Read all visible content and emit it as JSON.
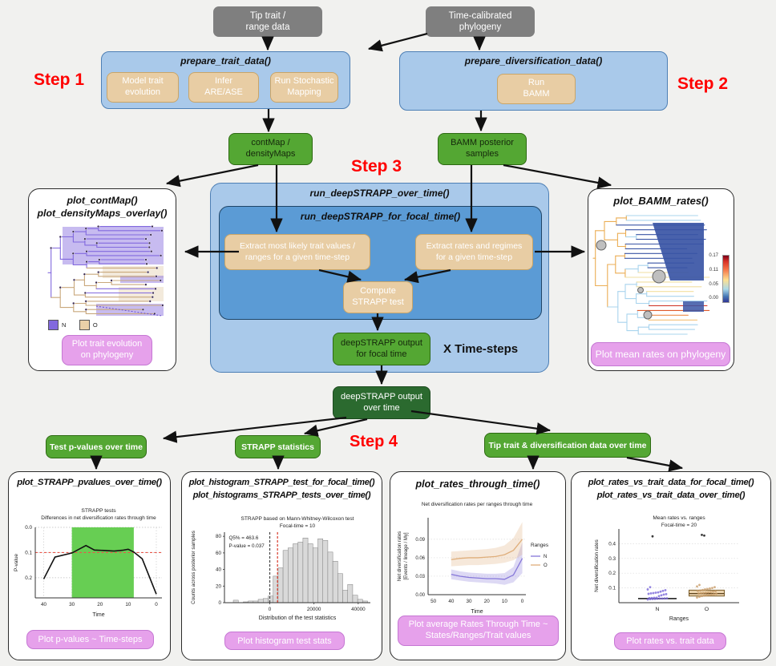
{
  "colors": {
    "step_label": "#FF0000",
    "gray_box": "#7F7F7F",
    "light_blue": "#A9C9EA",
    "inner_blue": "#5B9BD5",
    "tan": "#E8CDA4",
    "green": "#54A733",
    "dark_green": "#2B6A2F",
    "purple_button": "#E6A1EB",
    "trait_n_purple": "#8269DE",
    "trait_o_tan": "#EAD0A8"
  },
  "top": {
    "tip_trait_box": "Tip trait /\nrange data",
    "phylogeny_box": "Time-calibrated\nphylogeny"
  },
  "steps": {
    "s1": "Step 1",
    "s2": "Step 2",
    "s3": "Step 3",
    "s4": "Step 4"
  },
  "step1": {
    "title": "prepare_trait_data()",
    "items": [
      "Model trait\nevolution",
      "Infer\nARE/ASE",
      "Run Stochastic\nMapping"
    ]
  },
  "step2": {
    "title": "prepare_diversification_data()",
    "items": [
      "Run\nBAMM"
    ]
  },
  "mid": {
    "contmap_box": "contMap /\ndensityMaps",
    "bamm_box": "BAMM posterior\nsamples",
    "outer_title": "run_deepSTRAPP_over_time()",
    "inner_title": "run_deepSTRAPP_for_focal_time()",
    "extract_trait": "Extract most likely trait values /\nranges for a given time-step",
    "extract_rates": "Extract rates and regimes\nfor a given time-step",
    "compute": "Compute\nSTRAPP test",
    "focal_output": "deepSTRAPP output\nfor focal time",
    "timesteps_label": "X  Time-steps",
    "overtime_output": "deepSTRAPP output\nover time"
  },
  "left_panel": {
    "title1": "plot_contMap()",
    "title2": "plot_densityMaps_overlay()",
    "legend": [
      {
        "label": "N",
        "color": "#8269DE"
      },
      {
        "label": "O",
        "color": "#EAD0A8"
      }
    ],
    "button": "Plot trait evolution\non phylogeny"
  },
  "right_panel": {
    "title": "plot_BAMM_rates()",
    "colorbar_ticks": [
      "0.17",
      "0.11",
      "0.05",
      "0.00"
    ],
    "button": "Plot mean rates on phylogeny"
  },
  "step4_boxes": [
    "Test p-values over time",
    "STRAPP statistics",
    "Tip trait & diversification data over time"
  ],
  "bottom_panels": [
    {
      "title1": "plot_STRAPP_pvalues_over_time()",
      "button": "Plot p-values ~ Time-steps"
    },
    {
      "title1": "plot_histogram_STRAPP_test_for_focal_time()",
      "title2": "plot_histograms_STRAPP_tests_over_time()",
      "button": "Plot histogram test stats"
    },
    {
      "title1": "plot_rates_through_time()",
      "button": "Plot average Rates Through Time ~\nStates/Ranges/Trait values"
    },
    {
      "title1": "plot_rates_vs_trait_data_for_focal_time()",
      "title2": "plot_rates_vs_trait_data_over_time()",
      "button": "Plot rates vs. trait data"
    }
  ],
  "chart_data": [
    {
      "type": "line",
      "title": "STRAPP tests",
      "subtitle": "Differences in net diversification rates through time",
      "xlabel": "Time",
      "ylabel": "P-value",
      "xticks": [
        40,
        30,
        20,
        10,
        0
      ],
      "yticks": [
        0.0,
        0.1,
        0.2
      ],
      "xlim": [
        43,
        -2
      ],
      "ylim": [
        0,
        0.28
      ],
      "x_reversed": true,
      "y_inverted": true,
      "significance_band": {
        "x_from": 30,
        "x_to": 8,
        "color": "#67CE53"
      },
      "threshold_line": {
        "y": 0.1,
        "color": "#E8564A"
      },
      "x": [
        40,
        36,
        30,
        25,
        22,
        18,
        15,
        12,
        10,
        8,
        5,
        0
      ],
      "y": [
        0.205,
        0.118,
        0.102,
        0.072,
        0.09,
        0.092,
        0.094,
        0.091,
        0.087,
        0.098,
        0.125,
        0.265
      ]
    },
    {
      "type": "bar",
      "title": "STRAPP based on Mann-Whitney-Wilcoxon test",
      "subtitle": "Focal-time = 10",
      "xlabel": "Distribution of the test statistics",
      "ylabel": "Counts across posterior samples",
      "xticks": [
        0,
        20000,
        40000
      ],
      "yticks": [
        0,
        20,
        40,
        60,
        80
      ],
      "xlim": [
        -20500,
        45500
      ],
      "ylim": [
        0,
        85
      ],
      "bin_start": -16500,
      "bin_width": 2250,
      "values": [
        3,
        0,
        1,
        2,
        2,
        4,
        5,
        8,
        32,
        42,
        63,
        66,
        71,
        73,
        78,
        71,
        66,
        77,
        75,
        61,
        50,
        35,
        15,
        22,
        9,
        4,
        2
      ],
      "vlines": [
        {
          "x": 0,
          "color": "#444444"
        },
        {
          "x": 3500,
          "color": "#D73A2A"
        }
      ],
      "annotations": [
        "Q5% = 463.6",
        "P-value = 0.037"
      ],
      "bar_color": "#D9D9D9"
    },
    {
      "type": "area",
      "title": "Net diversification rates per ranges through time",
      "xlabel": "Time",
      "ylabel": "Net diversification rates\n[Events / lineage / My]",
      "xticks": [
        50,
        40,
        30,
        20,
        10,
        0
      ],
      "yticks": [
        0.0,
        0.03,
        0.06,
        0.09
      ],
      "xlim": [
        53,
        -2
      ],
      "ylim": [
        0,
        0.125
      ],
      "x_reversed": true,
      "legend_title": "Ranges",
      "x": [
        40,
        35,
        30,
        25,
        20,
        15,
        10,
        5,
        0
      ],
      "series": [
        {
          "name": "N",
          "color": "#8677D9",
          "values": [
            0.033,
            0.03,
            0.028,
            0.027,
            0.026,
            0.026,
            0.025,
            0.032,
            0.059
          ],
          "lo": [
            0.025,
            0.023,
            0.021,
            0.02,
            0.019,
            0.018,
            0.016,
            0.02,
            0.035
          ],
          "hi": [
            0.041,
            0.038,
            0.036,
            0.035,
            0.034,
            0.034,
            0.035,
            0.045,
            0.085
          ]
        },
        {
          "name": "O",
          "color": "#DFAE7B",
          "values": [
            0.057,
            0.059,
            0.06,
            0.06,
            0.061,
            0.062,
            0.065,
            0.072,
            0.09
          ],
          "lo": [
            0.046,
            0.047,
            0.048,
            0.048,
            0.049,
            0.05,
            0.052,
            0.056,
            0.065
          ],
          "hi": [
            0.07,
            0.071,
            0.072,
            0.073,
            0.074,
            0.076,
            0.08,
            0.092,
            0.118
          ]
        }
      ]
    },
    {
      "type": "scatter",
      "title": "Mean rates vs. ranges",
      "subtitle": "Focal-time = 20",
      "xlabel": "Ranges",
      "ylabel": "Net diversification rates",
      "categories": [
        "N",
        "O"
      ],
      "yticks": [
        0.1,
        0.2,
        0.3,
        0.4
      ],
      "ylim": [
        0,
        0.5
      ],
      "points": {
        "N": [
          0.022,
          0.024,
          0.025,
          0.026,
          0.027,
          0.028,
          0.028,
          0.029,
          0.03,
          0.031,
          0.032,
          0.033,
          0.034,
          0.045,
          0.05,
          0.055,
          0.058,
          0.06,
          0.063,
          0.065,
          0.068,
          0.07,
          0.075,
          0.08,
          0.085,
          0.09,
          0.105,
          0.45
        ],
        "O": [
          0.035,
          0.04,
          0.045,
          0.048,
          0.05,
          0.052,
          0.055,
          0.057,
          0.06,
          0.062,
          0.064,
          0.066,
          0.068,
          0.07,
          0.072,
          0.075,
          0.078,
          0.08,
          0.083,
          0.086,
          0.09,
          0.093,
          0.096,
          0.1,
          0.105,
          0.11,
          0.12,
          0.46,
          0.455
        ]
      },
      "colors": {
        "N": "#7B68D9",
        "O": "#C89B66"
      },
      "o_box": {
        "q1": 0.045,
        "q3": 0.085,
        "median": 0.062
      },
      "n_median": 0.028
    }
  ]
}
